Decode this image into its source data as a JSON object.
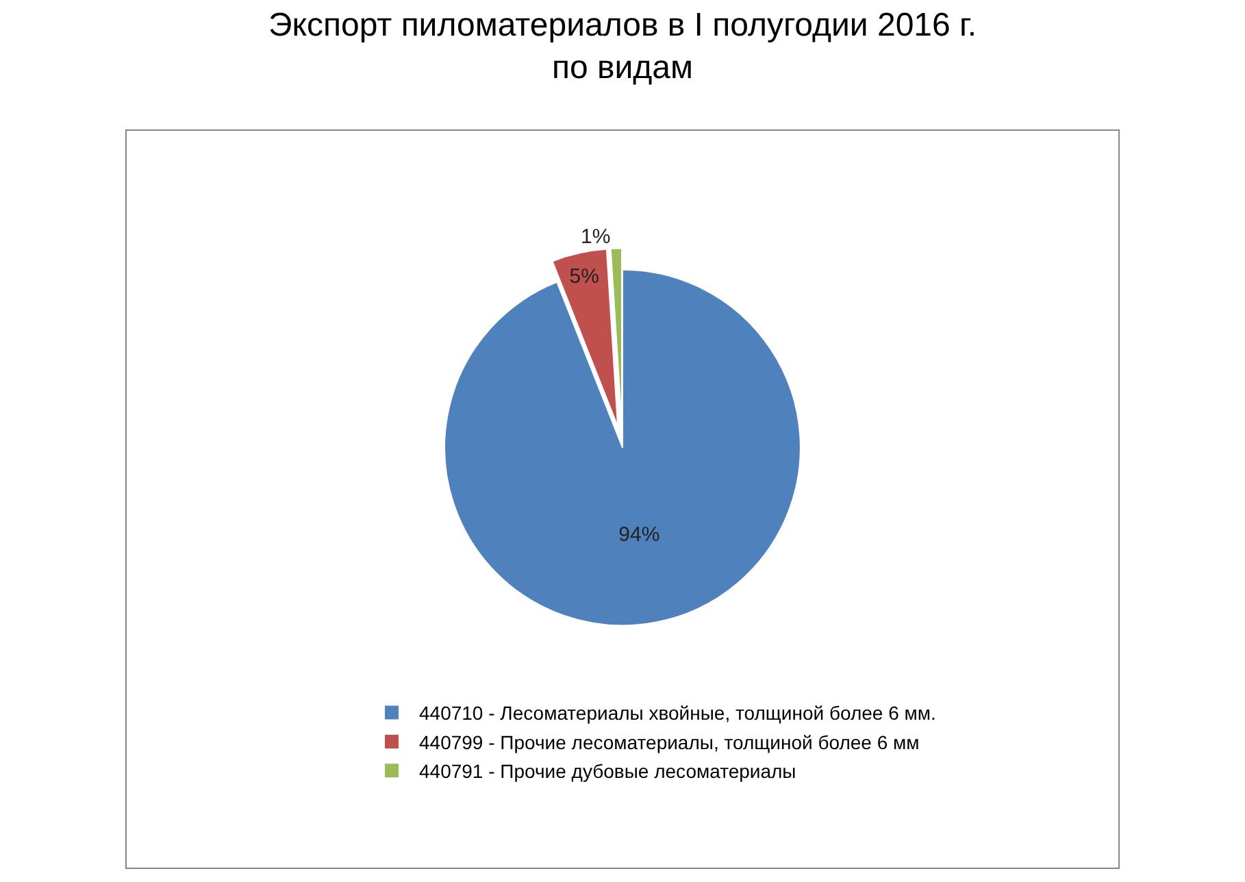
{
  "chart_data": {
    "type": "pie",
    "title": "Экспорт пиломатериалов в I полугодии 2016 г.\nпо видам",
    "categories": [
      "440710 - Лесоматериалы хвойные, толщиной более 6 мм.",
      "440799 - Прочие лесоматериалы, толщиной более 6 мм",
      "440791 - Прочие дубовые лесоматериалы"
    ],
    "values": [
      94,
      5,
      1
    ],
    "value_labels": [
      "94%",
      "5%",
      "1%"
    ],
    "colors": [
      "#4f81bd",
      "#c0504d",
      "#9bbb59"
    ],
    "legend": "bottom"
  }
}
